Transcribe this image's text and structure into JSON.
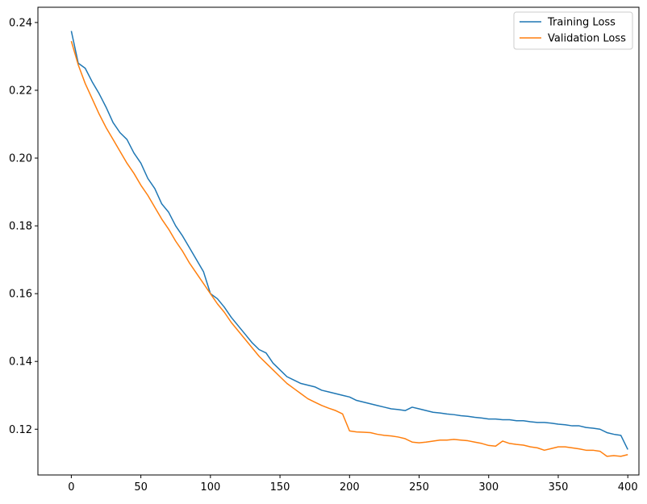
{
  "colors": {
    "training": "#1f77b4",
    "validation": "#ff7f0e"
  },
  "chart_data": {
    "type": "line",
    "title": "",
    "xlabel": "",
    "ylabel": "",
    "xlim": [
      -24,
      408
    ],
    "ylim": [
      0.1065,
      0.2445
    ],
    "xticks": [
      0,
      50,
      100,
      150,
      200,
      250,
      300,
      350,
      400
    ],
    "yticks": [
      0.12,
      0.14,
      0.16,
      0.18,
      0.2,
      0.22,
      0.24
    ],
    "ytick_labels": [
      "0.12",
      "0.14",
      "0.16",
      "0.18",
      "0.20",
      "0.22",
      "0.24"
    ],
    "grid": false,
    "legend_position": "top-right",
    "series": [
      {
        "name": "Training Loss",
        "color": "#1f77b4",
        "x": [
          0,
          5,
          10,
          15,
          20,
          25,
          30,
          35,
          40,
          45,
          50,
          55,
          60,
          65,
          70,
          75,
          80,
          85,
          90,
          95,
          100,
          105,
          110,
          115,
          120,
          125,
          130,
          135,
          140,
          145,
          150,
          155,
          160,
          165,
          170,
          175,
          180,
          185,
          190,
          195,
          200,
          205,
          210,
          215,
          220,
          225,
          230,
          235,
          240,
          245,
          250,
          255,
          260,
          265,
          270,
          275,
          280,
          285,
          290,
          295,
          300,
          305,
          310,
          315,
          320,
          325,
          330,
          335,
          340,
          345,
          350,
          355,
          360,
          365,
          370,
          375,
          380,
          385,
          390,
          395,
          400
        ],
        "y": [
          0.2375,
          0.228,
          0.2265,
          0.2225,
          0.219,
          0.215,
          0.2105,
          0.2075,
          0.2055,
          0.2015,
          0.1985,
          0.194,
          0.191,
          0.1865,
          0.184,
          0.18,
          0.177,
          0.1735,
          0.17,
          0.1665,
          0.16,
          0.1585,
          0.156,
          0.153,
          0.1505,
          0.148,
          0.1455,
          0.1435,
          0.1425,
          0.1395,
          0.1375,
          0.1355,
          0.1345,
          0.1335,
          0.133,
          0.1325,
          0.1315,
          0.131,
          0.1305,
          0.13,
          0.1295,
          0.1285,
          0.128,
          0.1275,
          0.127,
          0.1265,
          0.126,
          0.1258,
          0.1255,
          0.1265,
          0.126,
          0.1255,
          0.125,
          0.1248,
          0.1245,
          0.1243,
          0.124,
          0.1238,
          0.1235,
          0.1233,
          0.123,
          0.123,
          0.1228,
          0.1228,
          0.1225,
          0.1225,
          0.1222,
          0.122,
          0.122,
          0.1218,
          0.1215,
          0.1213,
          0.121,
          0.121,
          0.1205,
          0.1203,
          0.12,
          0.119,
          0.1185,
          0.1182,
          0.114
        ]
      },
      {
        "name": "Validation Loss",
        "color": "#ff7f0e",
        "x": [
          0,
          5,
          10,
          15,
          20,
          25,
          30,
          35,
          40,
          45,
          50,
          55,
          60,
          65,
          70,
          75,
          80,
          85,
          90,
          95,
          100,
          105,
          110,
          115,
          120,
          125,
          130,
          135,
          140,
          145,
          150,
          155,
          160,
          165,
          170,
          175,
          180,
          185,
          190,
          195,
          200,
          205,
          210,
          215,
          220,
          225,
          230,
          235,
          240,
          245,
          250,
          255,
          260,
          265,
          270,
          275,
          280,
          285,
          290,
          295,
          300,
          305,
          310,
          315,
          320,
          325,
          330,
          335,
          340,
          345,
          350,
          355,
          360,
          365,
          370,
          375,
          380,
          385,
          390,
          395,
          400
        ],
        "y": [
          0.2345,
          0.2275,
          0.222,
          0.2175,
          0.213,
          0.209,
          0.2055,
          0.202,
          0.1985,
          0.1955,
          0.192,
          0.189,
          0.1855,
          0.182,
          0.179,
          0.1755,
          0.1725,
          0.169,
          0.166,
          0.163,
          0.16,
          0.157,
          0.1545,
          0.1515,
          0.149,
          0.1465,
          0.144,
          0.1415,
          0.1395,
          0.1375,
          0.1355,
          0.1335,
          0.132,
          0.1305,
          0.129,
          0.128,
          0.127,
          0.1262,
          0.1255,
          0.1245,
          0.1195,
          0.1192,
          0.1191,
          0.119,
          0.1185,
          0.1182,
          0.118,
          0.1177,
          0.1172,
          0.1162,
          0.116,
          0.1162,
          0.1165,
          0.1168,
          0.1168,
          0.117,
          0.1168,
          0.1166,
          0.1162,
          0.1158,
          0.1152,
          0.115,
          0.1165,
          0.1158,
          0.1155,
          0.1153,
          0.1148,
          0.1145,
          0.1138,
          0.1143,
          0.1148,
          0.1148,
          0.1145,
          0.1142,
          0.1138,
          0.1138,
          0.1135,
          0.112,
          0.1122,
          0.112,
          0.1125
        ]
      }
    ]
  }
}
